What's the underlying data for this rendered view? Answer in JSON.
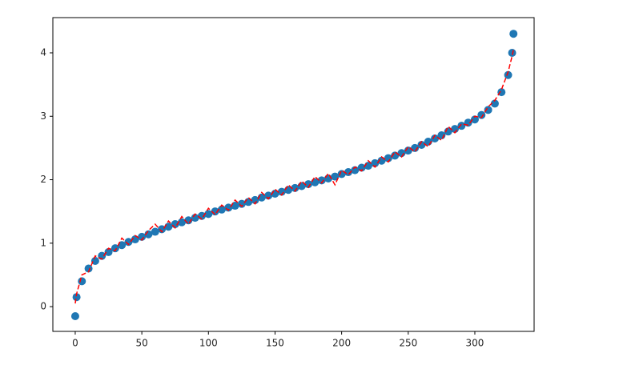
{
  "chart_data": {
    "type": "scatter",
    "x": [
      0,
      1,
      5,
      10,
      15,
      20,
      25,
      30,
      35,
      40,
      45,
      50,
      55,
      60,
      65,
      70,
      75,
      80,
      85,
      90,
      95,
      100,
      105,
      110,
      115,
      120,
      125,
      130,
      135,
      140,
      145,
      150,
      155,
      160,
      165,
      170,
      175,
      180,
      185,
      190,
      195,
      200,
      205,
      210,
      215,
      220,
      225,
      230,
      235,
      240,
      245,
      250,
      255,
      260,
      265,
      270,
      275,
      280,
      285,
      290,
      295,
      300,
      305,
      310,
      315,
      320,
      325,
      328,
      329
    ],
    "series": [
      {
        "color": "#1f77b4",
        "values": [
          -0.15,
          0.15,
          0.4,
          0.6,
          0.72,
          0.8,
          0.86,
          0.92,
          0.97,
          1.02,
          1.06,
          1.1,
          1.14,
          1.18,
          1.22,
          1.26,
          1.3,
          1.33,
          1.36,
          1.4,
          1.43,
          1.46,
          1.5,
          1.53,
          1.56,
          1.59,
          1.62,
          1.65,
          1.68,
          1.72,
          1.75,
          1.78,
          1.81,
          1.84,
          1.87,
          1.9,
          1.93,
          1.96,
          1.99,
          2.02,
          2.05,
          2.09,
          2.12,
          2.15,
          2.19,
          2.22,
          2.26,
          2.3,
          2.34,
          2.38,
          2.42,
          2.46,
          2.5,
          2.55,
          2.6,
          2.65,
          2.7,
          2.76,
          2.8,
          2.85,
          2.9,
          2.95,
          3.02,
          3.1,
          3.2,
          3.38,
          3.65,
          4.0,
          4.3
        ]
      },
      {
        "color": "#ff0000",
        "values": [
          0.05,
          0.2,
          0.5,
          0.55,
          0.8,
          0.75,
          0.92,
          0.88,
          1.08,
          0.98,
          1.12,
          1.05,
          1.2,
          1.3,
          1.18,
          1.35,
          1.24,
          1.42,
          1.3,
          1.46,
          1.38,
          1.55,
          1.45,
          1.6,
          1.52,
          1.68,
          1.58,
          1.72,
          1.62,
          1.8,
          1.7,
          1.85,
          1.76,
          1.92,
          1.82,
          1.98,
          1.88,
          2.05,
          1.95,
          2.1,
          1.92,
          2.15,
          2.08,
          2.2,
          2.14,
          2.3,
          2.2,
          2.36,
          2.28,
          2.44,
          2.36,
          2.52,
          2.44,
          2.6,
          2.52,
          2.7,
          2.62,
          2.84,
          2.74,
          2.88,
          2.86,
          3.0,
          2.98,
          3.15,
          3.25,
          3.42,
          3.7,
          3.95,
          4.05
        ]
      }
    ],
    "xlim": [
      -16.8,
      344.5
    ],
    "ylim": [
      -0.39,
      4.555
    ],
    "xticks": [
      0,
      50,
      100,
      150,
      200,
      250,
      300
    ],
    "yticks": [
      0,
      1,
      2,
      3,
      4
    ]
  }
}
